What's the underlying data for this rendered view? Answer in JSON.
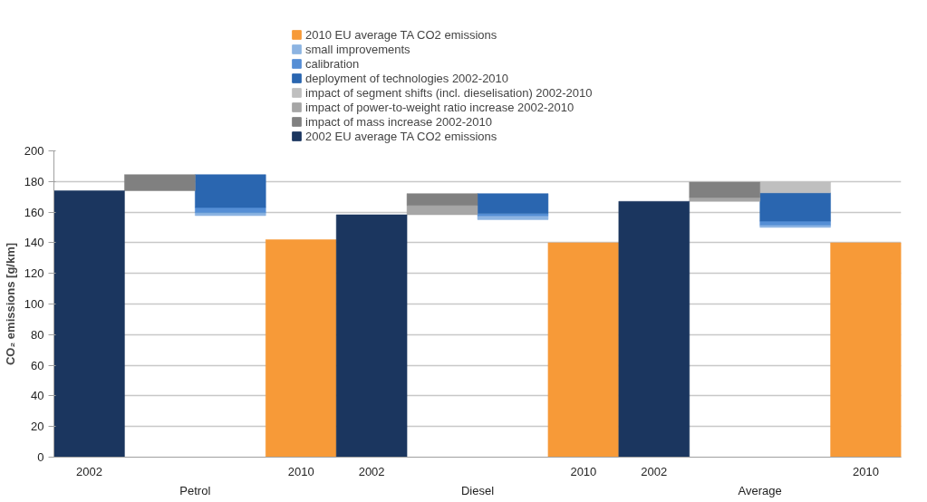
{
  "chart_data": {
    "type": "bar",
    "categories": [
      "2002",
      null,
      null,
      "2010",
      "2002",
      null,
      null,
      "2010",
      "2002",
      null,
      null,
      "2010"
    ],
    "annotations": [
      "Petrol",
      "Diesel",
      "Average"
    ],
    "ylabel": "CO₂ emissions [g/km]",
    "ylim": [
      0,
      200
    ],
    "yticks": [
      0,
      20,
      40,
      60,
      80,
      100,
      120,
      140,
      160,
      180,
      200
    ],
    "grid": "y",
    "legend": "top",
    "series": [
      {
        "name": "2010 EU average TA CO2 emissions",
        "color": "#f79a38",
        "values": [
          null,
          null,
          null,
          142,
          null,
          null,
          null,
          140,
          null,
          null,
          null,
          140
        ]
      },
      {
        "name": "small improvements",
        "color": "#8db4e2",
        "base": [
          null,
          null,
          159.6,
          null,
          null,
          null,
          157.5,
          null,
          null,
          null,
          151.5,
          null
        ],
        "values": [
          null,
          null,
          -1.9,
          null,
          null,
          null,
          -2.4,
          null,
          null,
          null,
          -1.5,
          null
        ]
      },
      {
        "name": "calibration",
        "color": "#558ed5",
        "base": [
          null,
          null,
          163,
          null,
          null,
          null,
          159.2,
          null,
          null,
          null,
          154.1,
          null
        ],
        "values": [
          null,
          null,
          -3.4,
          null,
          null,
          null,
          -1.7,
          null,
          null,
          null,
          -2.6,
          null
        ]
      },
      {
        "name": "deployment of technologies 2002-2010",
        "color": "#2a66b0",
        "base": [
          null,
          null,
          184.5,
          null,
          null,
          null,
          172.1,
          null,
          null,
          null,
          172.6,
          null
        ],
        "values": [
          null,
          null,
          -21.5,
          null,
          null,
          null,
          -12.9,
          null,
          null,
          null,
          -18.5,
          null
        ]
      },
      {
        "name": "impact of segment shifts (incl. dieselisation) 2002-2010",
        "color": "#bfbfbf",
        "base": [
          null,
          null,
          null,
          null,
          null,
          null,
          null,
          null,
          null,
          null,
          179.6,
          null
        ],
        "values": [
          null,
          null,
          null,
          null,
          null,
          null,
          null,
          null,
          null,
          null,
          -7.0,
          null
        ]
      },
      {
        "name": "impact of power-to-weight ratio increase 2002-2010",
        "color": "#a6a6a6",
        "base": [
          null,
          null,
          null,
          null,
          null,
          158.3,
          null,
          null,
          null,
          167,
          null,
          null
        ],
        "values": [
          null,
          null,
          null,
          null,
          null,
          6.1,
          null,
          null,
          null,
          2.6,
          null,
          null
        ]
      },
      {
        "name": "impact of mass increase 2002-2010",
        "color": "#808080",
        "base": [
          null,
          174,
          null,
          null,
          null,
          164.4,
          null,
          null,
          null,
          169.6,
          null,
          null
        ],
        "values": [
          null,
          10.5,
          null,
          null,
          null,
          7.7,
          null,
          null,
          null,
          10.0,
          null,
          null
        ]
      },
      {
        "name": "2002 EU average TA CO2 emissions",
        "color": "#1b365f",
        "values": [
          174,
          null,
          null,
          null,
          158.3,
          null,
          null,
          null,
          167,
          null,
          null,
          null
        ]
      }
    ]
  }
}
